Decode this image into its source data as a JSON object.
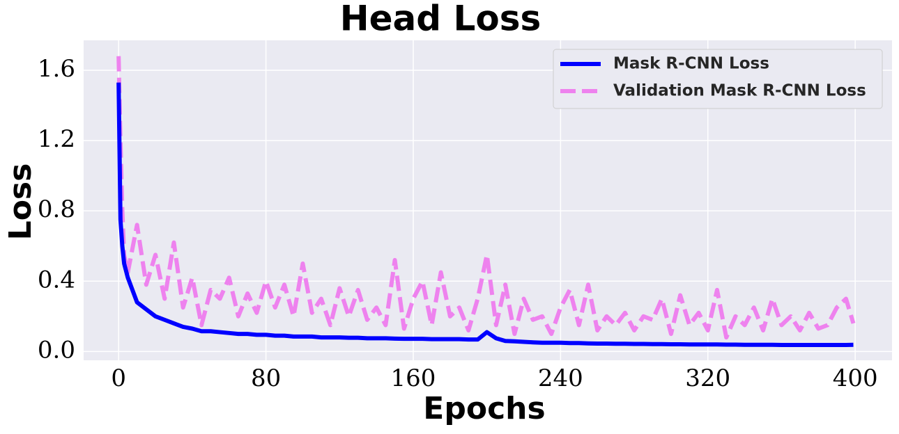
{
  "chart_data": {
    "type": "line",
    "title": "Head Loss",
    "x_label": "Epochs",
    "y_label": "Loss",
    "x": [
      0,
      1,
      2,
      3,
      5,
      10,
      15,
      20,
      25,
      30,
      35,
      40,
      45,
      50,
      55,
      60,
      65,
      70,
      75,
      80,
      85,
      90,
      95,
      100,
      105,
      110,
      115,
      120,
      125,
      130,
      135,
      140,
      145,
      150,
      155,
      160,
      165,
      170,
      175,
      180,
      185,
      190,
      195,
      200,
      205,
      210,
      215,
      220,
      225,
      230,
      235,
      240,
      245,
      250,
      255,
      260,
      265,
      270,
      275,
      280,
      285,
      290,
      295,
      300,
      305,
      310,
      315,
      320,
      325,
      330,
      335,
      340,
      345,
      350,
      355,
      360,
      365,
      370,
      375,
      380,
      385,
      390,
      395,
      399
    ],
    "series": [
      {
        "name": "Mask R-CNN Loss",
        "color": "#0000ff",
        "dashed": false,
        "values": [
          1.53,
          0.75,
          0.6,
          0.5,
          0.42,
          0.28,
          0.24,
          0.2,
          0.18,
          0.16,
          0.14,
          0.13,
          0.115,
          0.115,
          0.11,
          0.105,
          0.1,
          0.1,
          0.095,
          0.095,
          0.09,
          0.09,
          0.085,
          0.085,
          0.085,
          0.08,
          0.08,
          0.08,
          0.078,
          0.078,
          0.075,
          0.075,
          0.075,
          0.073,
          0.072,
          0.072,
          0.072,
          0.07,
          0.07,
          0.07,
          0.07,
          0.068,
          0.068,
          0.11,
          0.075,
          0.06,
          0.058,
          0.055,
          0.052,
          0.05,
          0.05,
          0.05,
          0.048,
          0.048,
          0.046,
          0.045,
          0.045,
          0.044,
          0.044,
          0.043,
          0.043,
          0.042,
          0.042,
          0.041,
          0.041,
          0.04,
          0.04,
          0.04,
          0.04,
          0.039,
          0.039,
          0.038,
          0.038,
          0.038,
          0.038,
          0.037,
          0.037,
          0.037,
          0.037,
          0.037,
          0.037,
          0.037,
          0.037,
          0.038
        ]
      },
      {
        "name": "Validation Mask R-CNN Loss",
        "color": "#ee82ee",
        "dashed": true,
        "values": [
          1.68,
          1.2,
          0.8,
          0.55,
          0.45,
          0.72,
          0.38,
          0.55,
          0.3,
          0.62,
          0.25,
          0.42,
          0.15,
          0.35,
          0.3,
          0.42,
          0.2,
          0.33,
          0.22,
          0.4,
          0.25,
          0.38,
          0.2,
          0.5,
          0.22,
          0.3,
          0.15,
          0.36,
          0.2,
          0.35,
          0.18,
          0.25,
          0.15,
          0.52,
          0.13,
          0.3,
          0.4,
          0.15,
          0.45,
          0.2,
          0.25,
          0.12,
          0.3,
          0.55,
          0.15,
          0.38,
          0.1,
          0.3,
          0.18,
          0.2,
          0.1,
          0.25,
          0.35,
          0.15,
          0.38,
          0.12,
          0.2,
          0.15,
          0.22,
          0.12,
          0.2,
          0.18,
          0.3,
          0.1,
          0.32,
          0.15,
          0.22,
          0.12,
          0.35,
          0.08,
          0.2,
          0.15,
          0.25,
          0.12,
          0.3,
          0.15,
          0.2,
          0.12,
          0.22,
          0.13,
          0.15,
          0.25,
          0.3,
          0.16
        ]
      }
    ],
    "xlim": [
      -19,
      420
    ],
    "ylim": [
      -0.05,
      1.77
    ],
    "xticks": [
      0,
      80,
      160,
      240,
      320,
      400
    ],
    "yticks": [
      {
        "value": 0,
        "label": "0.0"
      },
      0.4,
      0.8,
      1.2,
      1.6
    ],
    "grid": true,
    "legend": "upper right"
  }
}
